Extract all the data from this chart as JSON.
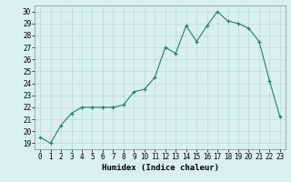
{
  "x": [
    0,
    1,
    2,
    3,
    4,
    5,
    6,
    7,
    8,
    9,
    10,
    11,
    12,
    13,
    14,
    15,
    16,
    17,
    18,
    19,
    20,
    21,
    22,
    23
  ],
  "y": [
    19.5,
    19.0,
    20.5,
    21.5,
    22.0,
    22.0,
    22.0,
    22.0,
    22.2,
    23.3,
    23.5,
    24.5,
    27.0,
    26.5,
    28.8,
    27.5,
    28.8,
    30.0,
    29.2,
    29.0,
    28.6,
    27.5,
    24.2,
    21.2
  ],
  "xlabel": "Humidex (Indice chaleur)",
  "xlim": [
    -0.5,
    23.5
  ],
  "ylim": [
    18.5,
    30.5
  ],
  "yticks": [
    19,
    20,
    21,
    22,
    23,
    24,
    25,
    26,
    27,
    28,
    29,
    30
  ],
  "xticks": [
    0,
    1,
    2,
    3,
    4,
    5,
    6,
    7,
    8,
    9,
    10,
    11,
    12,
    13,
    14,
    15,
    16,
    17,
    18,
    19,
    20,
    21,
    22,
    23
  ],
  "line_color": "#2d7a6a",
  "marker": "+",
  "bg_color": "#d8f0ee",
  "grid_color": "#b8dcd8",
  "label_fontsize": 6.5,
  "tick_fontsize": 5.5
}
